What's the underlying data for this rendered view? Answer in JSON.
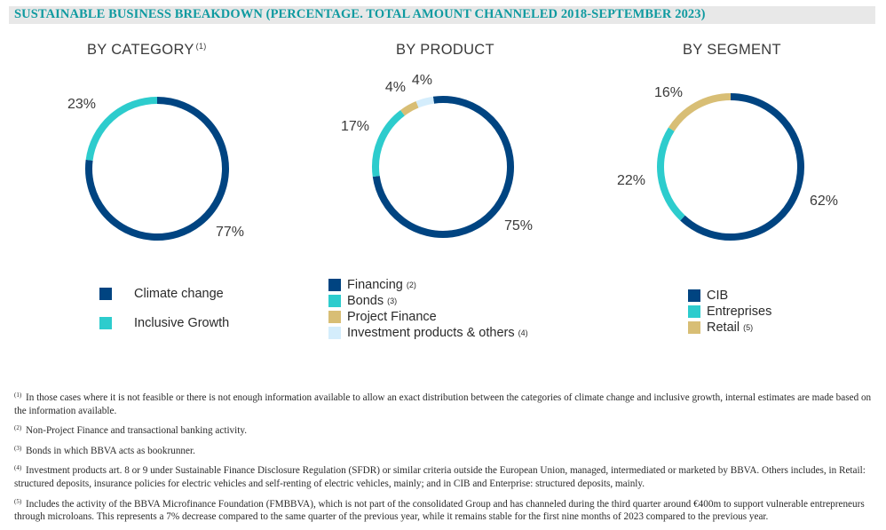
{
  "header": {
    "title": "SUSTAINABLE BUSINESS BREAKDOWN (PERCENTAGE. TOTAL AMOUNT CHANNELED 2018-SEPTEMBER 2023)"
  },
  "colors": {
    "navy": "#004481",
    "turquoise": "#2dcccd",
    "sand": "#d8be75",
    "light_blue": "#d4edfc"
  },
  "chart_data": [
    {
      "type": "pie",
      "title": "BY CATEGORY",
      "title_note": "(1)",
      "donut": true,
      "slices": [
        {
          "label": "Climate change",
          "value": 77,
          "display": "77%",
          "color": "#004481",
          "note": ""
        },
        {
          "label": "Inclusive Growth",
          "value": 23,
          "display": "23%",
          "color": "#2dcccd",
          "note": ""
        }
      ]
    },
    {
      "type": "pie",
      "title": "BY PRODUCT",
      "title_note": "",
      "donut": true,
      "slices": [
        {
          "label": "Financing",
          "value": 75,
          "display": "75%",
          "color": "#004481",
          "note": "(2)"
        },
        {
          "label": "Bonds",
          "value": 17,
          "display": "17%",
          "color": "#2dcccd",
          "note": "(3)"
        },
        {
          "label": "Project Finance",
          "value": 4,
          "display": "4%",
          "color": "#d8be75",
          "note": ""
        },
        {
          "label": "Investment products & others",
          "value": 4,
          "display": "4%",
          "color": "#d4edfc",
          "note": "(4)"
        }
      ]
    },
    {
      "type": "pie",
      "title": "BY SEGMENT",
      "title_note": "",
      "donut": true,
      "slices": [
        {
          "label": "CIB",
          "value": 62,
          "display": "62%",
          "color": "#004481",
          "note": ""
        },
        {
          "label": "Entreprises",
          "value": 22,
          "display": "22%",
          "color": "#2dcccd",
          "note": ""
        },
        {
          "label": "Retail",
          "value": 16,
          "display": "16%",
          "color": "#d8be75",
          "note": "(5)"
        }
      ]
    }
  ],
  "footnotes": [
    {
      "mark": "(1)",
      "text": "In those cases where it is not feasible or there is not enough information available to allow an exact distribution between the categories of climate change and inclusive growth, internal estimates are made based on the information available."
    },
    {
      "mark": "(2)",
      "text": "Non-Project Finance and transactional banking activity."
    },
    {
      "mark": "(3)",
      "text": "Bonds in which BBVA acts as bookrunner."
    },
    {
      "mark": "(4)",
      "text": "Investment products art. 8 or 9 under Sustainable Finance Disclosure Regulation (SFDR) or similar criteria outside the European Union, managed, intermediated or marketed by BBVA. Others includes, in Retail: structured deposits, insurance policies for electric vehicles and self-renting of electric vehicles, mainly; and in CIB and Enterprise: structured deposits, mainly."
    },
    {
      "mark": "(5)",
      "text": "Includes the activity of the BBVA Microfinance Foundation (FMBBVA), which is not part of the consolidated Group and has channeled during the third quarter around €400m to support vulnerable entrepreneurs through microloans. This represents a 7% decrease compared to the same quarter of the previous year, while it remains stable for the first nine months of 2023 compared to the previous year."
    }
  ]
}
